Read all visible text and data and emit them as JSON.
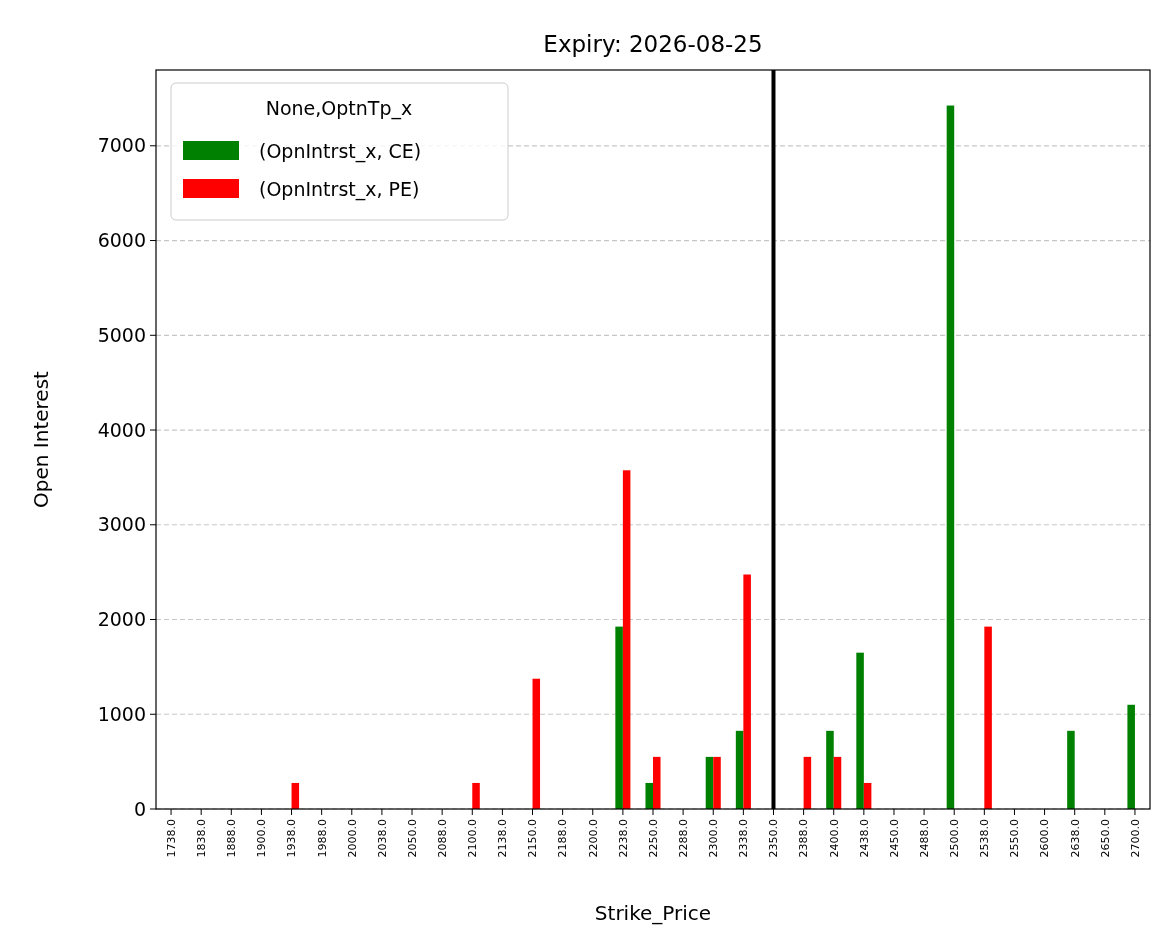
{
  "chart_data": {
    "type": "bar",
    "title": "Expiry: 2026-08-25",
    "xlabel": "Strike_Price",
    "ylabel": "Open Interest",
    "legend_title": "None,OptnTp_x",
    "categories": [
      "1738.0",
      "1838.0",
      "1888.0",
      "1900.0",
      "1938.0",
      "1988.0",
      "2000.0",
      "2038.0",
      "2050.0",
      "2088.0",
      "2100.0",
      "2138.0",
      "2150.0",
      "2188.0",
      "2200.0",
      "2238.0",
      "2250.0",
      "2288.0",
      "2300.0",
      "2338.0",
      "2350.0",
      "2388.0",
      "2400.0",
      "2438.0",
      "2450.0",
      "2488.0",
      "2500.0",
      "2538.0",
      "2550.0",
      "2600.0",
      "2638.0",
      "2650.0",
      "2700.0"
    ],
    "series": [
      {
        "name": "(OpnIntrst_x, CE)",
        "color": "#008000",
        "values": [
          0,
          0,
          0,
          0,
          0,
          0,
          0,
          0,
          0,
          0,
          0,
          0,
          0,
          0,
          0,
          1925,
          275,
          0,
          550,
          825,
          0,
          0,
          825,
          1650,
          0,
          0,
          7425,
          0,
          0,
          0,
          825,
          0,
          1100
        ]
      },
      {
        "name": "(OpnIntrst_x, PE)",
        "color": "#ff0000",
        "values": [
          0,
          0,
          0,
          0,
          275,
          0,
          0,
          0,
          0,
          0,
          275,
          0,
          1375,
          0,
          0,
          3575,
          550,
          0,
          550,
          2475,
          0,
          550,
          550,
          275,
          0,
          0,
          0,
          1925,
          0,
          0,
          0,
          0,
          0
        ]
      }
    ],
    "ylim": [
      0,
      7800
    ],
    "yticks": [
      0,
      1000,
      2000,
      3000,
      4000,
      5000,
      6000,
      7000
    ],
    "grid": "y",
    "legend": "top left",
    "ref_lines": [
      {
        "axis": "x",
        "value": "2350.0",
        "color": "#000000"
      }
    ]
  }
}
